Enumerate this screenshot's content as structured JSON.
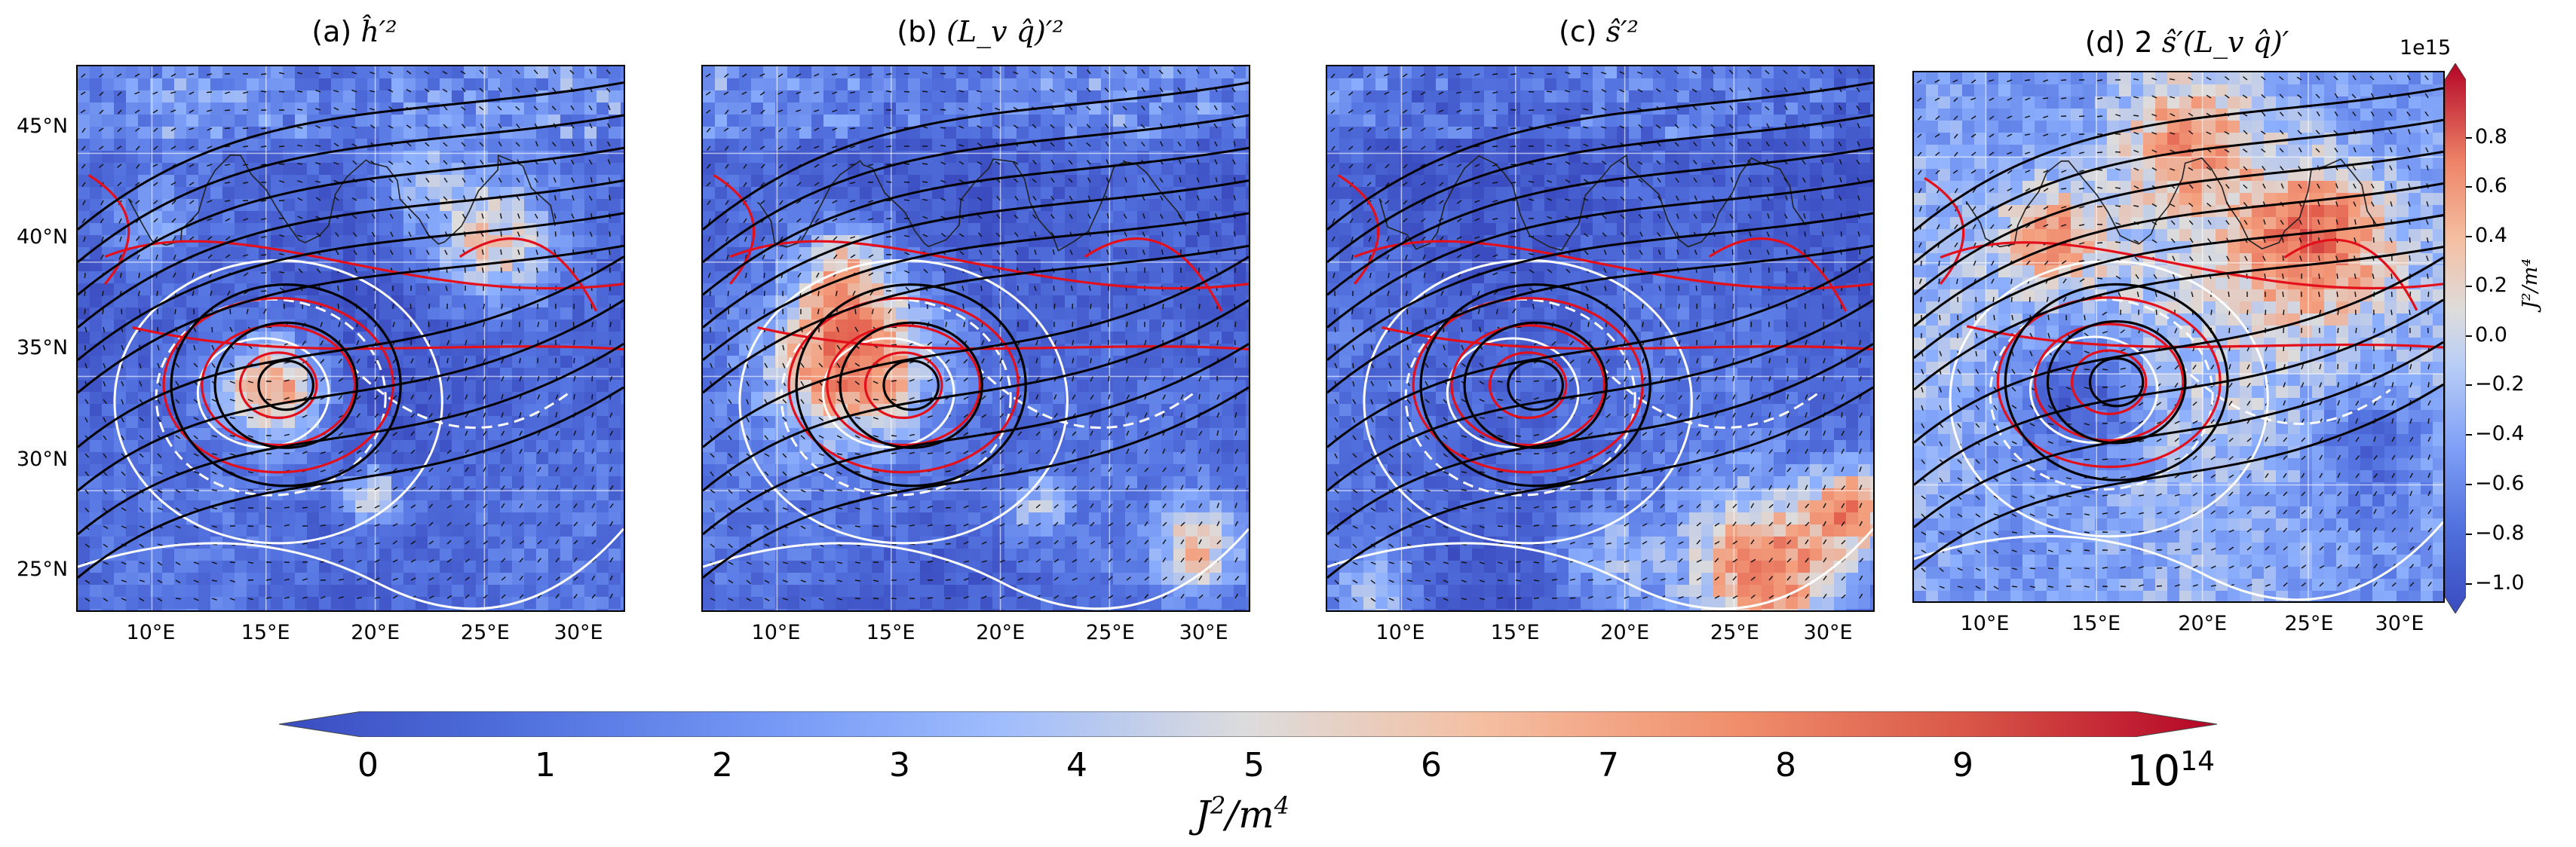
{
  "panels": [
    {
      "id": "a",
      "title_prefix": "(a) ",
      "title_math": "ĥ′²",
      "show_lat": true,
      "lon_ticks": [
        "10°E",
        "15°E",
        "20°E",
        "25°E",
        "30°E"
      ],
      "lat_ticks": [
        "45°N",
        "40°N",
        "35°N",
        "30°N",
        "25°N"
      ]
    },
    {
      "id": "b",
      "title_prefix": "(b) ",
      "title_math": "(L_v q̂)′²",
      "show_lat": false,
      "lon_ticks": [
        "10°E",
        "15°E",
        "20°E",
        "25°E",
        "30°E"
      ]
    },
    {
      "id": "c",
      "title_prefix": "(c) ",
      "title_math": "ŝ′²",
      "show_lat": false,
      "lon_ticks": [
        "10°E",
        "15°E",
        "20°E",
        "25°E",
        "30°E"
      ]
    },
    {
      "id": "d",
      "title_prefix": "(d) 2 ",
      "title_math": "ŝ′(L_v q̂)′",
      "show_lat": false,
      "lon_ticks": [
        "10°E",
        "15°E",
        "20°E",
        "25°E",
        "30°E"
      ]
    }
  ],
  "colorbar_h": {
    "ticks": [
      "0",
      "1",
      "2",
      "3",
      "4",
      "5",
      "6",
      "7",
      "8",
      "9"
    ],
    "exponent_base": "10",
    "exponent_power": "14",
    "label_main": "J",
    "label_sup": "2",
    "label_mid": "/m",
    "label_sup2": "4"
  },
  "colorbar_v": {
    "offset": "1e15",
    "ticks": [
      "0.8",
      "0.6",
      "0.4",
      "0.2",
      "0.0",
      "−0.2",
      "−0.4",
      "−0.6",
      "−0.8",
      "−1.0"
    ],
    "label": "J²/m⁴"
  },
  "colors": {
    "low": "#3a4cc0",
    "mid": "#dddcdc",
    "high": "#b40426",
    "contour_red": "#e3101b",
    "contour_white": "#ffffff",
    "contour_black": "#000000"
  }
}
